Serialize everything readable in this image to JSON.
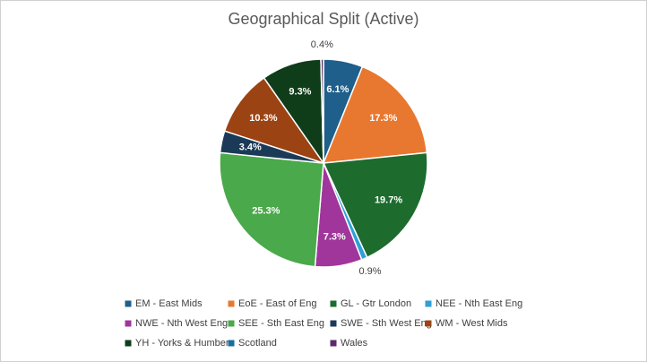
{
  "chart_data": {
    "type": "pie",
    "title": "Geographical Split (Active)",
    "categories": [
      "EM - East Mids",
      "EoE - East of Eng",
      "GL - Gtr London",
      "NEE - Nth East Eng",
      "NWE - Nth West Eng",
      "SEE - Sth East Eng",
      "SWE - Sth West Eng",
      "WM - West Mids",
      "YH - Yorks & Humber",
      "Scotland",
      "Wales"
    ],
    "values": [
      6.1,
      17.3,
      19.7,
      0.9,
      7.3,
      25.3,
      3.4,
      10.3,
      9.3,
      0,
      0.4
    ],
    "value_labels": [
      "6.1%",
      "17.3%",
      "19.7%",
      "0.9%",
      "7.3%",
      "25.3%",
      "3.4%",
      "10.3%",
      "9.3%",
      null,
      "0.4%"
    ],
    "colors": [
      "#1f5f8b",
      "#e8782f",
      "#1e6b2e",
      "#2e9fd8",
      "#a0359c",
      "#4aa94a",
      "#1b3a57",
      "#9c4314",
      "#0f3d1a",
      "#1a6f9a",
      "#5b2a6b"
    ],
    "legend": "bottom"
  }
}
